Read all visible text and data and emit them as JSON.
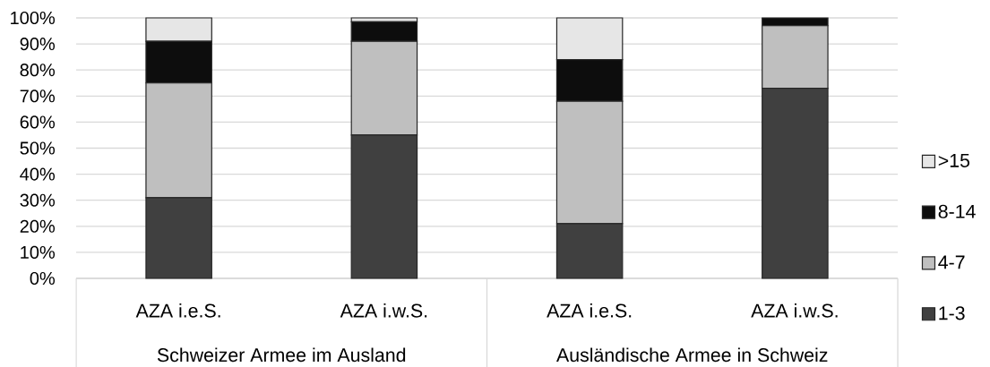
{
  "chart_data": {
    "type": "bar",
    "stacked": true,
    "categories": [
      "AZA i.e.S.",
      "AZA i.w.S.",
      "AZA i.e.S.",
      "AZA i.w.S."
    ],
    "series": [
      {
        "name": "1-3",
        "color": "#404040",
        "values": [
          31,
          55,
          21,
          73
        ]
      },
      {
        "name": "4-7",
        "color": "#bfbfbf",
        "values": [
          44,
          36,
          47,
          24
        ]
      },
      {
        "name": "8-14",
        "color": "#0d0d0d",
        "values": [
          16,
          7.5,
          16,
          3
        ]
      },
      {
        "name": ">15",
        "color": "#e6e6e6",
        "values": [
          9,
          1.5,
          16,
          null
        ]
      }
    ],
    "ylim": [
      0,
      100
    ],
    "yticks": [
      {
        "value": 0,
        "label": "0%"
      },
      {
        "value": 10,
        "label": "10%"
      },
      {
        "value": 20,
        "label": "20%"
      },
      {
        "value": 30,
        "label": "30%"
      },
      {
        "value": 40,
        "label": "40%"
      },
      {
        "value": 50,
        "label": "50%"
      },
      {
        "value": 60,
        "label": "60%"
      },
      {
        "value": 70,
        "label": "70%"
      },
      {
        "value": 80,
        "label": "80%"
      },
      {
        "value": 90,
        "label": "90%"
      },
      {
        "value": 100,
        "label": "100%"
      }
    ],
    "grid": "y",
    "legend": "right",
    "annotations": [
      "Schweizer Armee im Ausland",
      "Ausländische Armee in Schweiz"
    ]
  }
}
